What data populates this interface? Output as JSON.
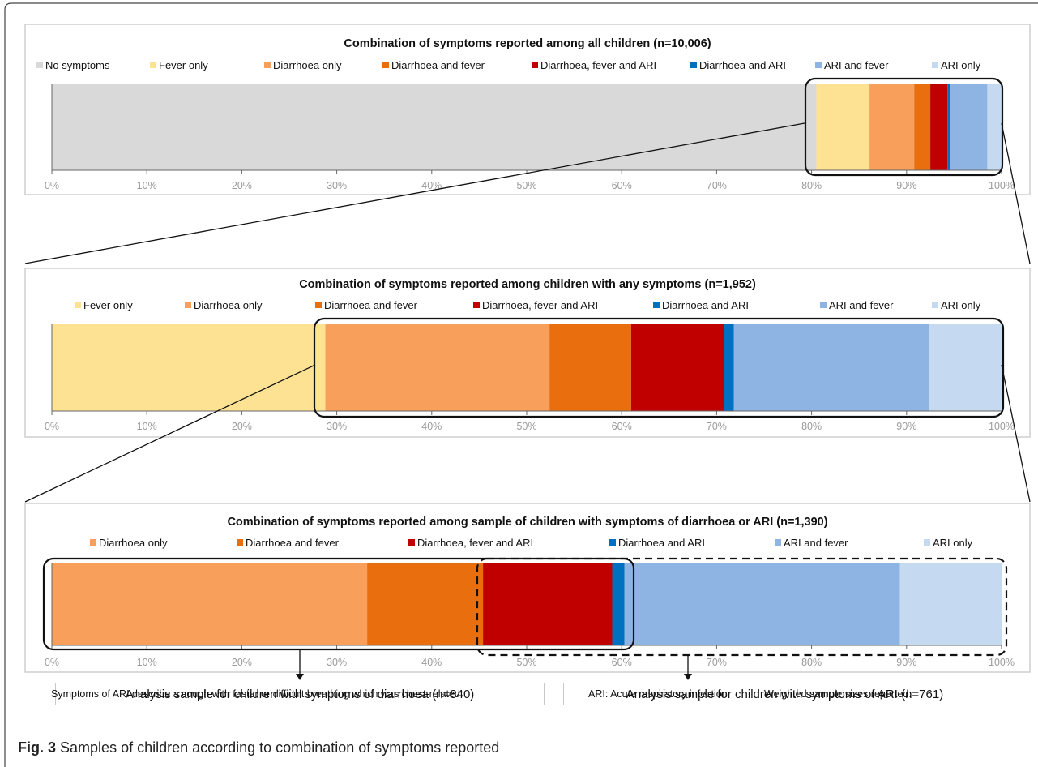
{
  "colors": {
    "No symptoms": "#d9d9d9",
    "Fever only": "#fde294",
    "Diarrhoea only": "#f8a05b",
    "Diarrhoea and fever": "#e86e0e",
    "Diarrhoea, fever and ARI": "#c00000",
    "Diarrhoea and ARI": "#0070c0",
    "ARI and fever": "#8eb4e3",
    "ARI only": "#c5d9f0"
  },
  "chart_data": [
    {
      "type": "bar",
      "orientation": "horizontal-stacked",
      "title": "Combination of symptoms reported among all children (n=10,006)",
      "x_ticks": [
        "0%",
        "10%",
        "20%",
        "30%",
        "40%",
        "50%",
        "60%",
        "70%",
        "80%",
        "90%",
        "100%"
      ],
      "xlim": [
        0,
        100
      ],
      "legend_position": "top",
      "series": [
        {
          "name": "No symptoms",
          "value": 80.5
        },
        {
          "name": "Fever only",
          "value": 5.6
        },
        {
          "name": "Diarrhoea only",
          "value": 4.7
        },
        {
          "name": "Diarrhoea and fever",
          "value": 1.7
        },
        {
          "name": "Diarrhoea, fever and ARI",
          "value": 1.8
        },
        {
          "name": "Diarrhoea and ARI",
          "value": 0.3
        },
        {
          "name": "ARI and fever",
          "value": 3.9
        },
        {
          "name": "ARI only",
          "value": 1.5
        }
      ]
    },
    {
      "type": "bar",
      "orientation": "horizontal-stacked",
      "title": "Combination of symptoms reported among children with any symptoms (n=1,952)",
      "x_ticks": [
        "0%",
        "10%",
        "20%",
        "30%",
        "40%",
        "50%",
        "60%",
        "70%",
        "80%",
        "90%",
        "100%"
      ],
      "xlim": [
        0,
        100
      ],
      "legend_position": "top",
      "series": [
        {
          "name": "Fever only",
          "value": 28.8
        },
        {
          "name": "Diarrhoea only",
          "value": 23.6
        },
        {
          "name": "Diarrhoea and fever",
          "value": 8.6
        },
        {
          "name": "Diarrhoea, fever and ARI",
          "value": 9.8
        },
        {
          "name": "Diarrhoea and ARI",
          "value": 1.0
        },
        {
          "name": "ARI and fever",
          "value": 20.6
        },
        {
          "name": "ARI only",
          "value": 7.6
        }
      ]
    },
    {
      "type": "bar",
      "orientation": "horizontal-stacked",
      "title": "Combination of symptoms reported among sample of children with symptoms of diarrhoea or ARI  (n=1,390)",
      "x_ticks": [
        "0%",
        "10%",
        "20%",
        "30%",
        "40%",
        "50%",
        "60%",
        "70%",
        "80%",
        "90%",
        "100%"
      ],
      "xlim": [
        0,
        100
      ],
      "legend_position": "top",
      "series": [
        {
          "name": "Diarrhoea only",
          "value": 33.2
        },
        {
          "name": "Diarrhoea and fever",
          "value": 12.2
        },
        {
          "name": "Diarrhoea, fever and ARI",
          "value": 13.6
        },
        {
          "name": "Diarrhoea and ARI",
          "value": 1.3
        },
        {
          "name": "ARI and fever",
          "value": 29.0
        },
        {
          "name": "ARI only",
          "value": 10.7
        }
      ]
    }
  ],
  "analysis": {
    "diarrhoea": "Analysis sample for children with symptoms of diarrhoea (n=840)",
    "ari": "Analysis sample for children with symptoms of ARI (n=761)"
  },
  "notes": {
    "ari_definition": "Symptoms of ARI describe a cough with faster or difficult breathing which was chest-related.",
    "ari_abbrev": "ARI: Acute respiratory infection.",
    "weighted": "Weighted sample sizes reported."
  },
  "caption": {
    "label": "Fig. 3",
    "text": "Samples of children according to combination of symptoms reported"
  }
}
